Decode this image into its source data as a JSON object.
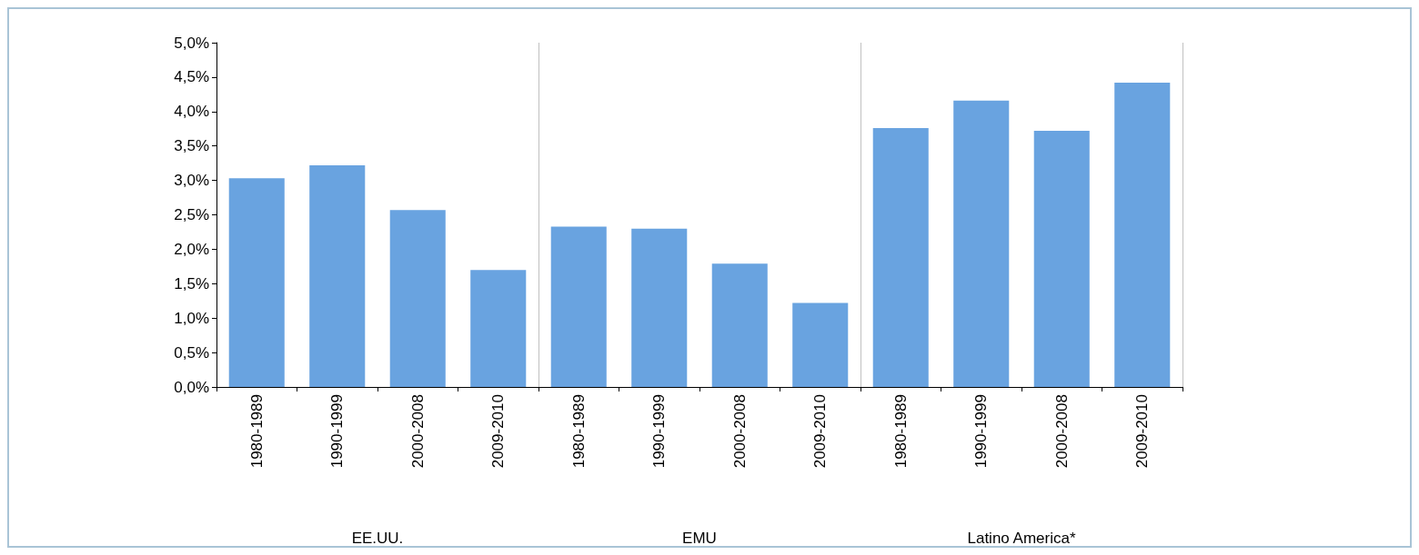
{
  "chart_data": {
    "type": "bar",
    "categories": [
      "1980-1989",
      "1990-1999",
      "2000-2008",
      "2009-2010",
      "1980-1989",
      "1990-1999",
      "2000-2008",
      "2009-2010",
      "1980-1989",
      "1990-1999",
      "2000-2008",
      "2009-2010"
    ],
    "values": [
      3.03,
      3.22,
      2.57,
      1.7,
      2.33,
      2.3,
      1.79,
      1.22,
      3.76,
      4.16,
      3.72,
      4.42
    ],
    "color": "#69a3e0",
    "ylim": [
      0,
      5
    ],
    "yticks": [
      {
        "value": 0,
        "label": "0,0%"
      },
      {
        "value": 0.5,
        "label": "0,5%"
      },
      {
        "value": 1,
        "label": "1,0%"
      },
      {
        "value": 1.5,
        "label": "1,5%"
      },
      {
        "value": 2,
        "label": "2,0%"
      },
      {
        "value": 2.5,
        "label": "2,5%"
      },
      {
        "value": 3,
        "label": "3,0%"
      },
      {
        "value": 3.5,
        "label": "3,5%"
      },
      {
        "value": 4,
        "label": "4,0%"
      },
      {
        "value": 4.5,
        "label": "4,5%"
      },
      {
        "value": 5,
        "label": "5,0%"
      }
    ],
    "annotations": [
      "EE.UU.",
      "EMU",
      "Latino America*"
    ],
    "grid": false
  }
}
